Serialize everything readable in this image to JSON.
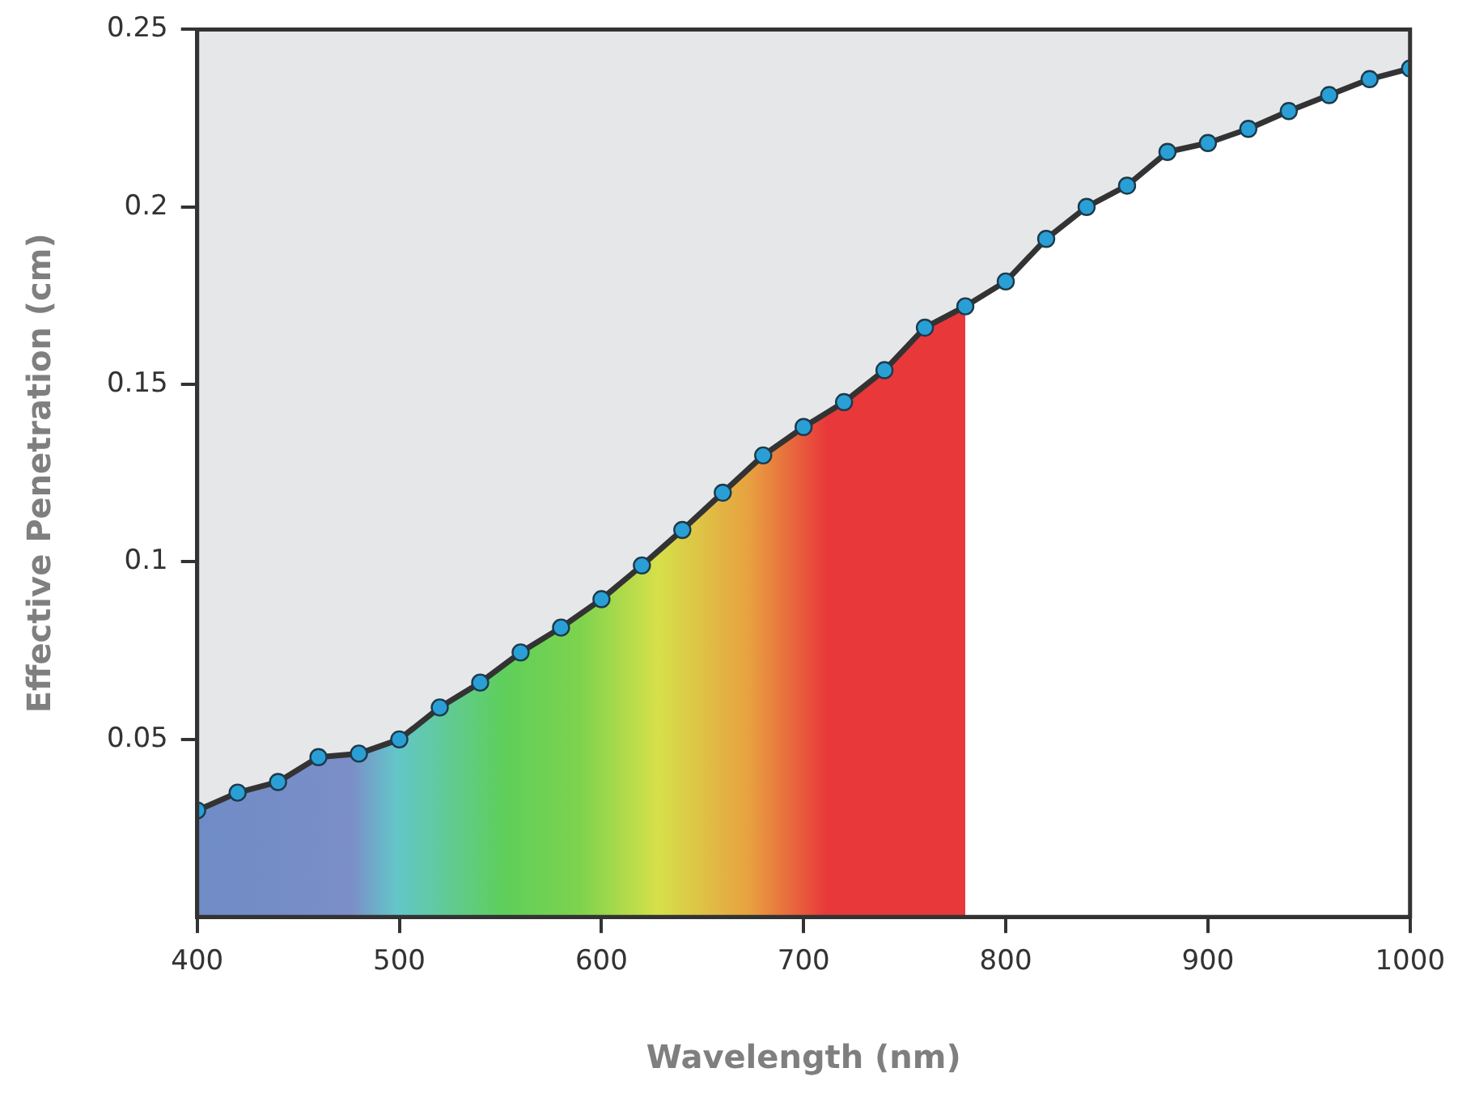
{
  "chart_data": {
    "type": "area",
    "xlabel": "Wavelength (nm)",
    "ylabel": "Effective Penetration (cm)",
    "x": [
      400,
      420,
      440,
      460,
      480,
      500,
      520,
      540,
      560,
      580,
      600,
      620,
      640,
      660,
      680,
      700,
      720,
      740,
      760,
      780,
      800,
      820,
      840,
      860,
      880,
      900,
      920,
      940,
      960,
      980,
      1000
    ],
    "series": [
      {
        "color": "#333333",
        "values": [
          0.03,
          0.035,
          0.038,
          0.045,
          0.046,
          0.05,
          0.059,
          0.066,
          0.0745,
          0.0815,
          0.0895,
          0.099,
          0.109,
          0.1195,
          0.13,
          0.138,
          0.145,
          0.154,
          0.166,
          0.172,
          0.179,
          0.191,
          0.2,
          0.206,
          0.2155,
          0.218,
          0.222,
          0.227,
          0.2315,
          0.236,
          0.239
        ]
      }
    ],
    "xlim": [
      400,
      1000
    ],
    "xticks": [
      400,
      500,
      600,
      700,
      800,
      900,
      1000
    ],
    "ylim": [
      0,
      0.25
    ],
    "yticks": [
      0.05,
      0.1,
      0.15,
      0.2,
      0.25
    ],
    "marker": "circle",
    "grid": false,
    "legend": false
  }
}
